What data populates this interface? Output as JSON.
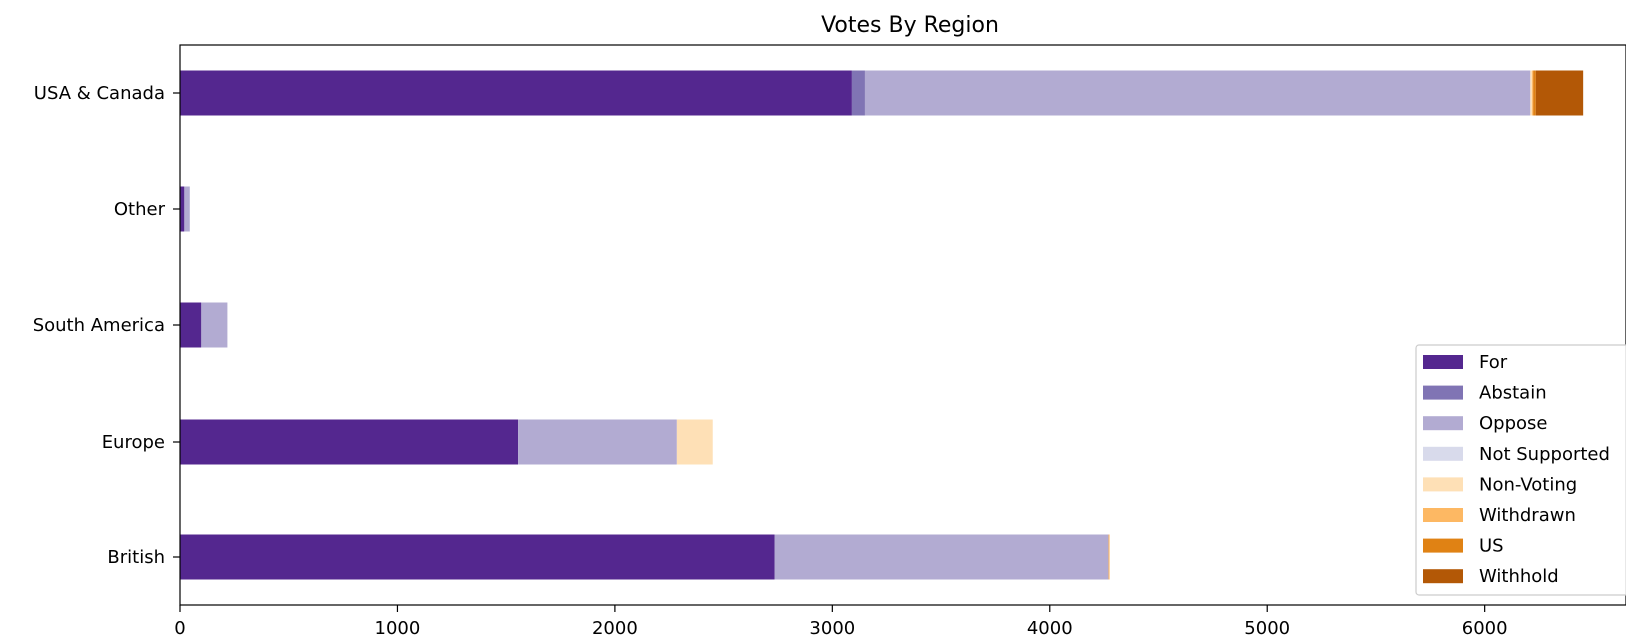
{
  "chart_data": {
    "type": "bar",
    "orientation": "horizontal",
    "stacked": true,
    "title": "Votes By Region",
    "xlabel": "",
    "ylabel": "",
    "xlim": [
      0,
      6650
    ],
    "xticks": [
      0,
      1000,
      2000,
      3000,
      4000,
      5000,
      6000
    ],
    "categories": [
      "British",
      "Europe",
      "South America",
      "Other",
      "USA & Canada"
    ],
    "grid": false,
    "legend_position": "lower-right",
    "series": [
      {
        "name": "For",
        "color": "#54278f",
        "values": [
          2735,
          1555,
          98,
          20,
          3090
        ]
      },
      {
        "name": "Abstain",
        "color": "#8074b4",
        "values": [
          0,
          0,
          0,
          0,
          60
        ]
      },
      {
        "name": "Oppose",
        "color": "#b2abd2",
        "values": [
          1535,
          730,
          120,
          25,
          3060
        ]
      },
      {
        "name": "Not Supported",
        "color": "#d8daeb",
        "values": [
          0,
          0,
          0,
          0,
          0
        ]
      },
      {
        "name": "Non-Voting",
        "color": "#fee0b6",
        "values": [
          0,
          165,
          0,
          0,
          8
        ]
      },
      {
        "name": "Withdrawn",
        "color": "#fdb863",
        "values": [
          5,
          0,
          0,
          0,
          5
        ]
      },
      {
        "name": "US",
        "color": "#e08214",
        "values": [
          0,
          0,
          0,
          0,
          12
        ]
      },
      {
        "name": "Withhold",
        "color": "#b35806",
        "values": [
          0,
          0,
          0,
          0,
          218
        ]
      }
    ]
  }
}
